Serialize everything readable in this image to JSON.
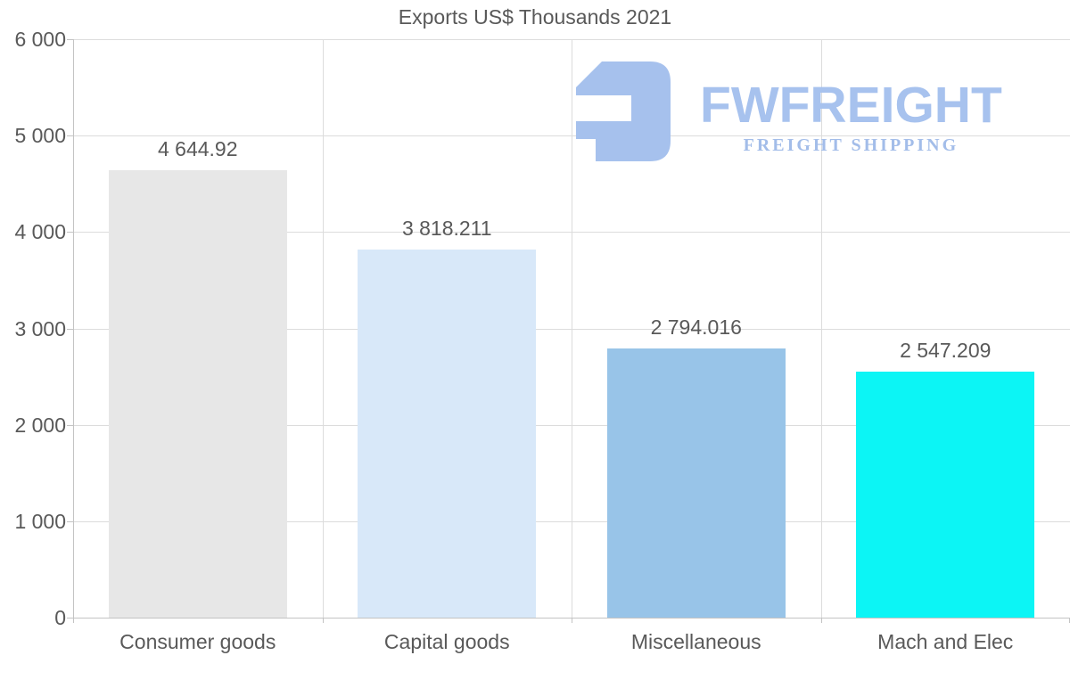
{
  "title": "Exports US$ Thousands 2021",
  "logo": {
    "name": "FWFREIGHT",
    "subtitle": "FREIGHT SHIPPING",
    "color": "#a6c1ed"
  },
  "chart_data": {
    "type": "bar",
    "title": "Exports US$ Thousands 2021",
    "categories": [
      "Consumer goods",
      "Capital goods",
      "Miscellaneous",
      "Mach and Elec"
    ],
    "values": [
      4644.92,
      3818.211,
      2794.016,
      2547.209
    ],
    "value_labels": [
      "4 644.92",
      "3 818.211",
      "2 794.016",
      "2 547.209"
    ],
    "bar_colors": [
      "#e7e7e7",
      "#d8e8f9",
      "#98c4e8",
      "#0cf5f5"
    ],
    "xlabel": "",
    "ylabel": "",
    "ylim": [
      0,
      6000
    ],
    "ytick_interval": 1000,
    "ytick_labels": [
      "0",
      "1 000",
      "2 000",
      "3 000",
      "4 000",
      "5 000",
      "6 000"
    ],
    "grid": true,
    "legend": false
  }
}
